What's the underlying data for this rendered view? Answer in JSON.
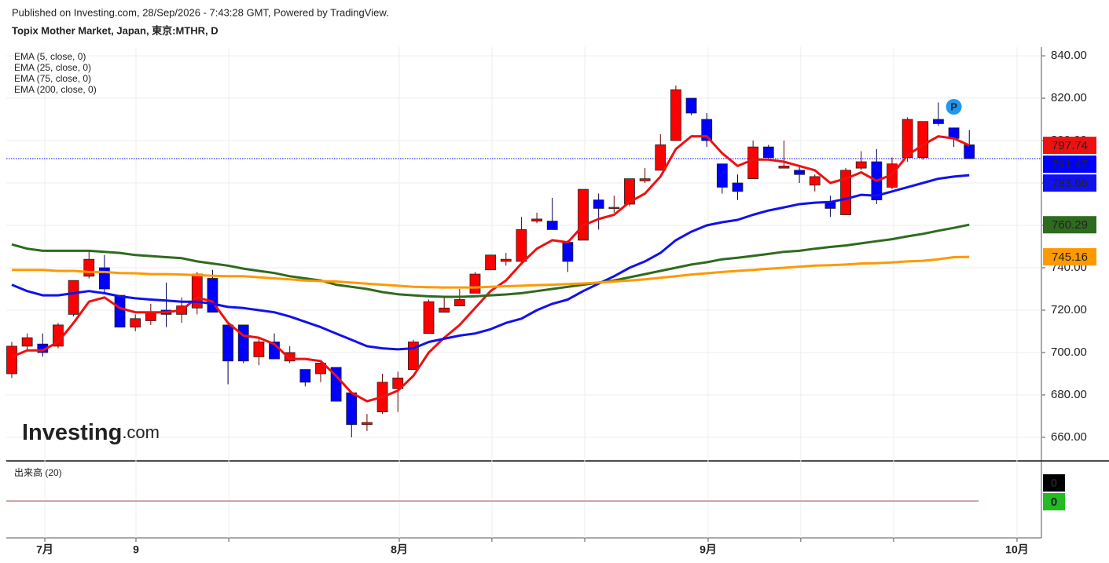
{
  "chart_data": {
    "type": "candlestick",
    "subtitle": "Published on Investing.com, 28/Sep/2026 - 7:43:28 GMT, Powered by TradingView.",
    "title": "Topix Mother Market, Japan, 東京:MTHR, D",
    "logo": [
      "Investing",
      ".com"
    ],
    "x": [
      0,
      1,
      2,
      3,
      4,
      5,
      6,
      7,
      8,
      9,
      10,
      11,
      12,
      13,
      14,
      15,
      16,
      17,
      18,
      19,
      20,
      21,
      22,
      23,
      24,
      25,
      26,
      27,
      28,
      29,
      30,
      31,
      32,
      33,
      34,
      35,
      36,
      37,
      38,
      39,
      40,
      41,
      42,
      43,
      44,
      45,
      46,
      47,
      48,
      49,
      50,
      51,
      52,
      53,
      54,
      55,
      56,
      57,
      58,
      59,
      60,
      61,
      62
    ],
    "open": [
      690,
      703,
      704,
      703,
      718,
      736,
      740,
      727,
      712,
      715,
      720,
      718,
      721,
      735,
      713,
      713,
      698,
      705,
      696,
      692,
      690,
      693,
      681,
      666,
      672,
      683,
      692,
      709,
      719,
      722,
      728,
      739,
      743,
      743,
      762,
      762,
      752,
      753,
      772,
      768,
      770,
      781,
      786,
      800,
      820,
      810,
      789,
      780,
      782,
      797,
      787,
      786,
      779,
      771,
      765,
      787,
      790,
      778,
      792,
      792,
      810,
      806,
      798
    ],
    "high": [
      705,
      709,
      709,
      714,
      734,
      748,
      746,
      727,
      718,
      723,
      733,
      726,
      738,
      739,
      713,
      713,
      707,
      709,
      703,
      692,
      696,
      693,
      681,
      671,
      690,
      691,
      706,
      725,
      726,
      730,
      738,
      746,
      747,
      764,
      766,
      773,
      753,
      777,
      775,
      774,
      782,
      787,
      803,
      826,
      820,
      813,
      789,
      784,
      800,
      798,
      800,
      788,
      784,
      774,
      787,
      795,
      796,
      792,
      811,
      809,
      818,
      806,
      805
    ],
    "low": [
      688,
      701,
      698,
      702,
      717,
      735,
      728,
      712,
      710,
      713,
      712,
      714,
      718,
      719,
      685,
      695,
      694,
      697,
      695,
      684,
      686,
      677,
      660,
      663,
      671,
      672,
      692,
      709,
      719,
      722,
      728,
      739,
      741,
      742,
      761,
      758,
      738,
      753,
      758,
      766,
      769,
      780,
      786,
      800,
      812,
      797,
      775,
      772,
      782,
      791,
      787,
      780,
      776,
      764,
      765,
      786,
      770,
      777,
      790,
      791,
      807,
      797,
      791.47
    ],
    "close": [
      703,
      707,
      700,
      713,
      734,
      744,
      730,
      712,
      716,
      719,
      718,
      722,
      737,
      719,
      696,
      696,
      705,
      697,
      700,
      686,
      695,
      677,
      666,
      667,
      686,
      688,
      705,
      724,
      721,
      725,
      737,
      746,
      744,
      758,
      763,
      758,
      743,
      777,
      768,
      768.5,
      782,
      782,
      798,
      824,
      813,
      800,
      778,
      776,
      797,
      792,
      788,
      784,
      783,
      768,
      786,
      790,
      772,
      789,
      810,
      809,
      808,
      801,
      791.47
    ],
    "up_color": "#ff0000",
    "down_color": "#0000ff",
    "last_price_color": "#0000ff",
    "series": [
      {
        "name": "EMA (5, close, 0)",
        "color": "#ee1111",
        "values": [
          698,
          701,
          701,
          705,
          714,
          724,
          726,
          721,
          719,
          719,
          719,
          720,
          726,
          724,
          714,
          708,
          707,
          704,
          697,
          697,
          696,
          689,
          681,
          677,
          679,
          682,
          689,
          700,
          707,
          713,
          721,
          729,
          734,
          742,
          749,
          753,
          752,
          760,
          763,
          765,
          771,
          775,
          783,
          796,
          802,
          802,
          794,
          788,
          791,
          791,
          790,
          788,
          786,
          780,
          782,
          785,
          781,
          784,
          793,
          798,
          802,
          801,
          797.74
        ]
      },
      {
        "name": "EMA (25, close, 0)",
        "color": "#1111ee",
        "values": [
          732,
          729,
          727,
          727,
          728,
          729,
          728,
          726.5,
          725.6,
          725,
          724.5,
          724,
          724,
          723,
          721.5,
          721,
          720,
          719,
          717,
          714.5,
          712,
          709,
          706,
          703,
          702,
          701.5,
          702,
          705,
          706.5,
          708,
          709,
          711,
          714,
          716,
          720,
          723,
          725,
          729,
          732.5,
          736,
          740,
          743,
          747,
          753,
          757,
          760,
          761.5,
          762.6,
          765,
          767,
          768.5,
          770,
          770.7,
          771,
          772.5,
          774.4,
          774,
          776,
          778,
          780,
          782,
          783,
          783.66
        ]
      },
      {
        "name": "EMA (75, close, 0)",
        "color": "#2e6b1f",
        "values": [
          751,
          749,
          748,
          748,
          748,
          748,
          747.5,
          747,
          746,
          745.5,
          745,
          744.5,
          743,
          742,
          741,
          739.6,
          738.5,
          737.5,
          736,
          735,
          734,
          732,
          731,
          730,
          728.5,
          727.5,
          727,
          726.5,
          726.3,
          726.3,
          726.5,
          727,
          727.4,
          728,
          729,
          730,
          731,
          732,
          733,
          734,
          735.5,
          737,
          738.5,
          740,
          741.5,
          742.6,
          744,
          744.7,
          745.6,
          746.5,
          747.5,
          748,
          749,
          749.8,
          750.5,
          751.5,
          752.5,
          753.5,
          754.8,
          756,
          757.5,
          758.8,
          760.29
        ]
      },
      {
        "name": "EMA (200, close, 0)",
        "color": "#ff9900",
        "values": [
          739,
          739,
          739,
          738.5,
          738.5,
          738,
          738,
          737.5,
          737.4,
          737,
          737,
          736.8,
          736.5,
          736.2,
          736,
          736,
          735.5,
          735,
          734.5,
          734,
          733.7,
          733.5,
          733,
          732.5,
          732,
          731.5,
          731,
          730.8,
          730.7,
          730.7,
          730.7,
          731,
          731.3,
          731.5,
          731.8,
          732,
          732.3,
          732.6,
          733,
          733.5,
          734,
          734.5,
          735.3,
          736,
          736.8,
          737.4,
          738,
          738.5,
          739,
          739.5,
          740,
          740.5,
          741,
          741.2,
          741.5,
          742,
          742.2,
          742.5,
          743,
          743.3,
          744,
          745,
          745.16
        ]
      }
    ],
    "ylim": [
      649.6,
      844.1
    ],
    "yticks": [
      {
        "value": 660,
        "label": "660.00"
      },
      {
        "value": 680,
        "label": "680.00"
      },
      {
        "value": 700,
        "label": "700.00"
      },
      {
        "value": 720,
        "label": "720.00"
      },
      {
        "value": 740,
        "label": "740.00"
      },
      {
        "value": 760,
        "label": "760.00"
      },
      {
        "value": 780,
        "label": "780.00"
      },
      {
        "value": 800,
        "label": "800.00"
      },
      {
        "value": 820,
        "label": "820.00"
      },
      {
        "value": 840,
        "label": "840.00"
      }
    ],
    "xlim": [
      -0.356,
      66.67
    ],
    "xticks": [
      {
        "value": 2.14,
        "label": "7月"
      },
      {
        "value": 8.04,
        "label": "9"
      },
      {
        "value": 14.05,
        "label": null
      },
      {
        "value": 25.09,
        "label": "8月"
      },
      {
        "value": 31.09,
        "label": null
      },
      {
        "value": 37.1,
        "label": null
      },
      {
        "value": 45.09,
        "label": "9月"
      },
      {
        "value": 51.09,
        "label": null
      },
      {
        "value": 57.1,
        "label": null
      },
      {
        "value": 65.09,
        "label": "10月"
      }
    ],
    "grid": true,
    "marker": {
      "label": "P",
      "x": 61,
      "color": "#2196f3"
    },
    "volume": {
      "name": "出来高 (20)",
      "value": 0,
      "ma": 0,
      "color": "#000000",
      "ma_color": "#22bb22"
    }
  }
}
